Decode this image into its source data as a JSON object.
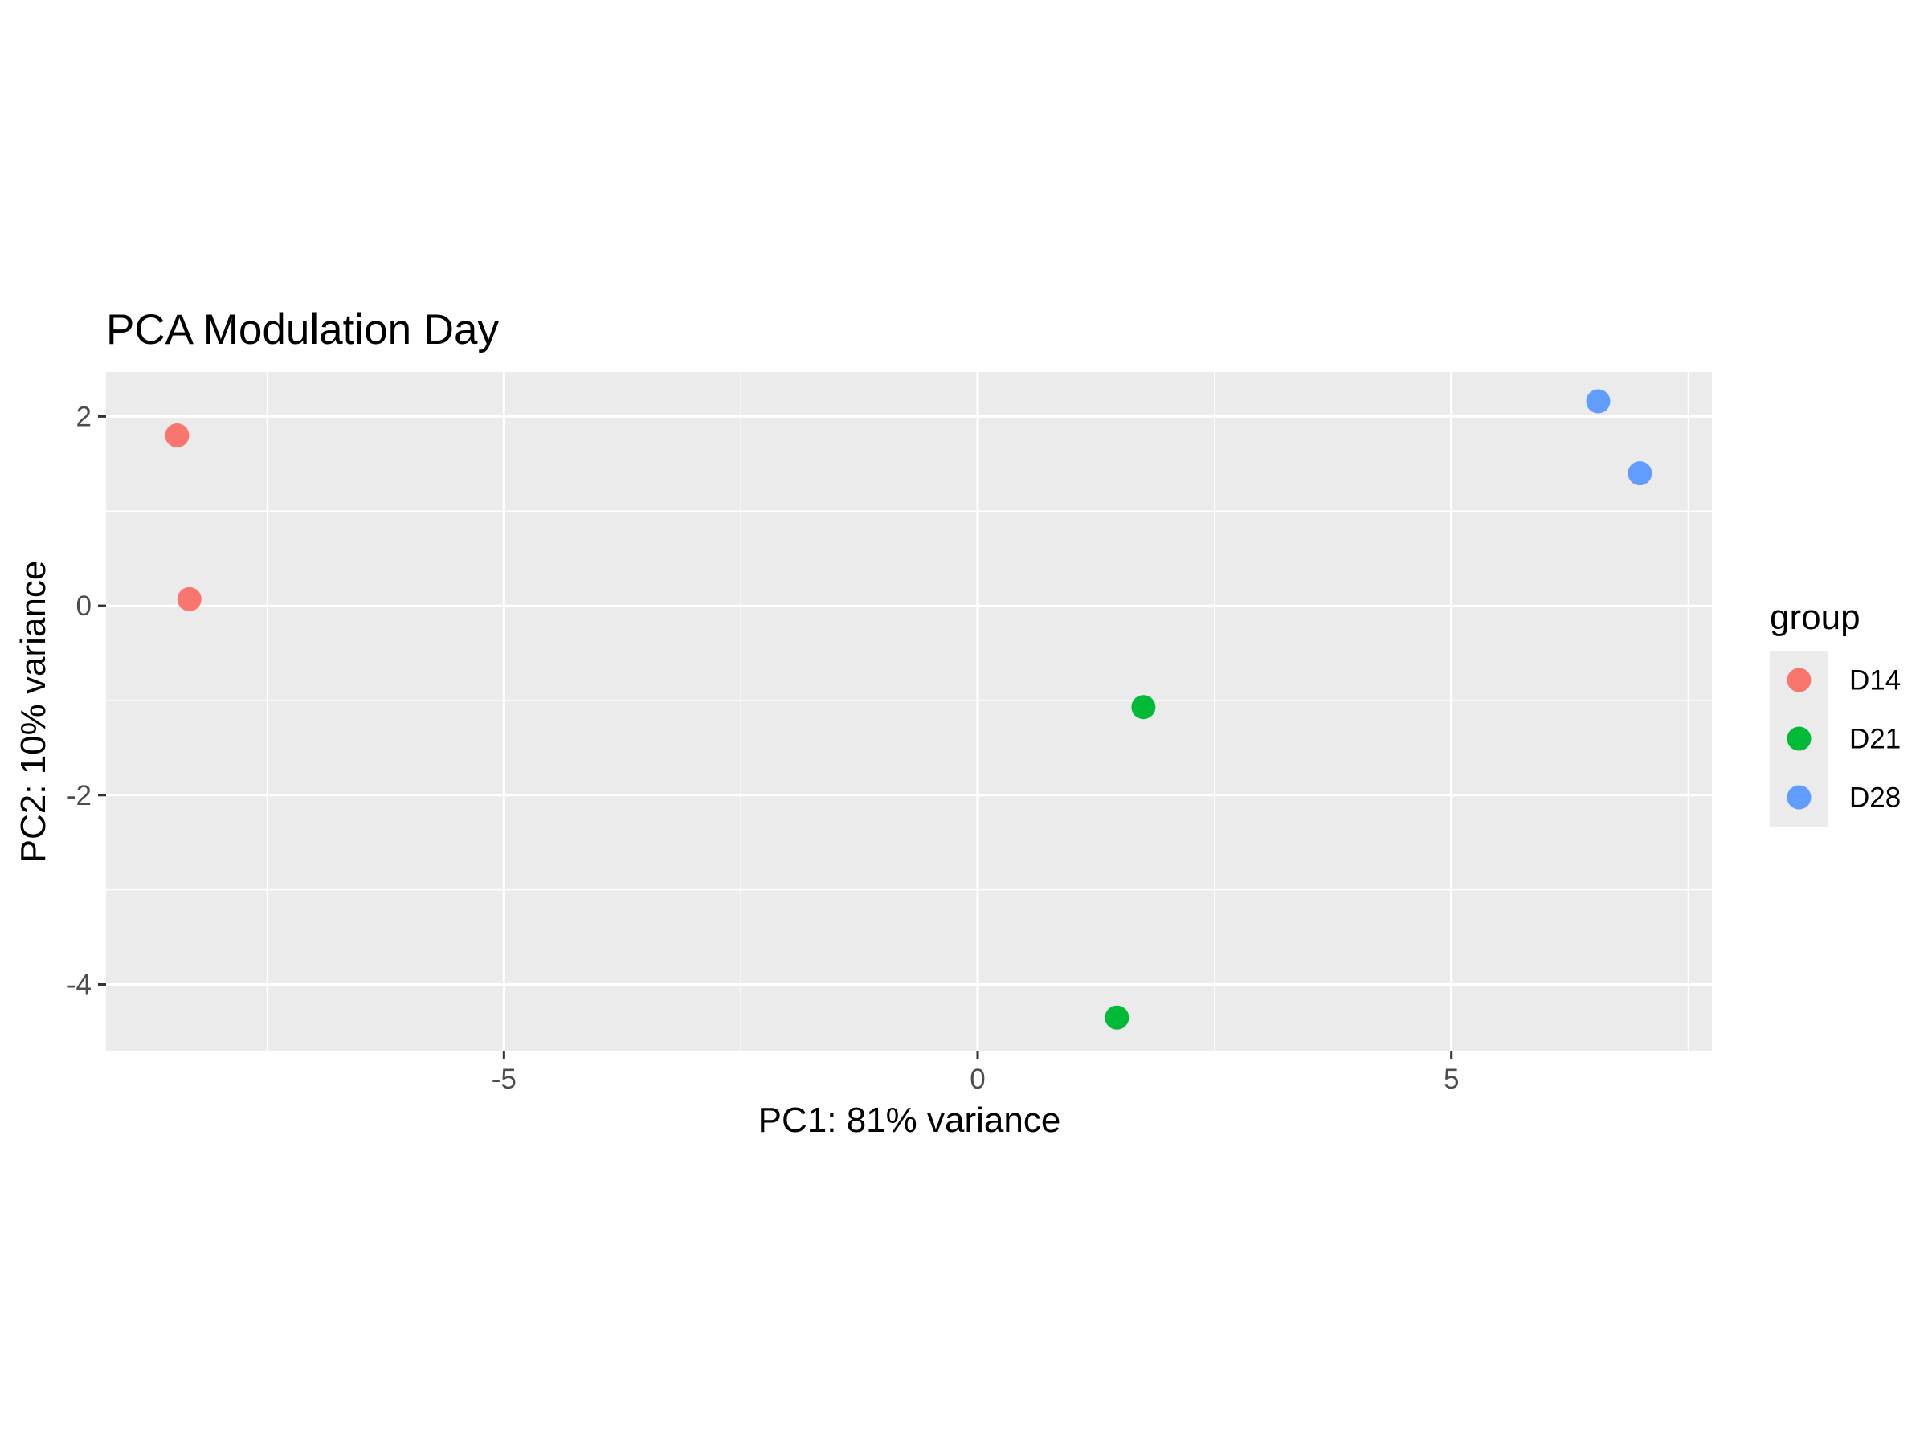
{
  "chart_data": {
    "type": "scatter",
    "title": "PCA Modulation Day",
    "xlabel": "PC1: 81% variance",
    "ylabel": "PC2: 10% variance",
    "xlim": [
      -9.2,
      7.75
    ],
    "ylim": [
      -4.7,
      2.47
    ],
    "x_ticks": [
      -5,
      0,
      5
    ],
    "x_tick_labels": [
      "-5",
      "0",
      "5"
    ],
    "y_ticks": [
      2,
      0,
      -2,
      -4
    ],
    "y_tick_labels": [
      "2",
      "0",
      "-2",
      "-4"
    ],
    "grid": true,
    "legend": {
      "title": "group",
      "position": "right"
    },
    "series": [
      {
        "name": "D14",
        "color": "#F8766D",
        "points": [
          {
            "x": -8.45,
            "y": 1.8
          },
          {
            "x": -8.32,
            "y": 0.07
          }
        ]
      },
      {
        "name": "D21",
        "color": "#00BA38",
        "points": [
          {
            "x": 1.75,
            "y": -1.07
          },
          {
            "x": 1.47,
            "y": -4.35
          }
        ]
      },
      {
        "name": "D28",
        "color": "#619CFF",
        "points": [
          {
            "x": 6.55,
            "y": 2.16
          },
          {
            "x": 6.99,
            "y": 1.4
          }
        ]
      }
    ]
  }
}
